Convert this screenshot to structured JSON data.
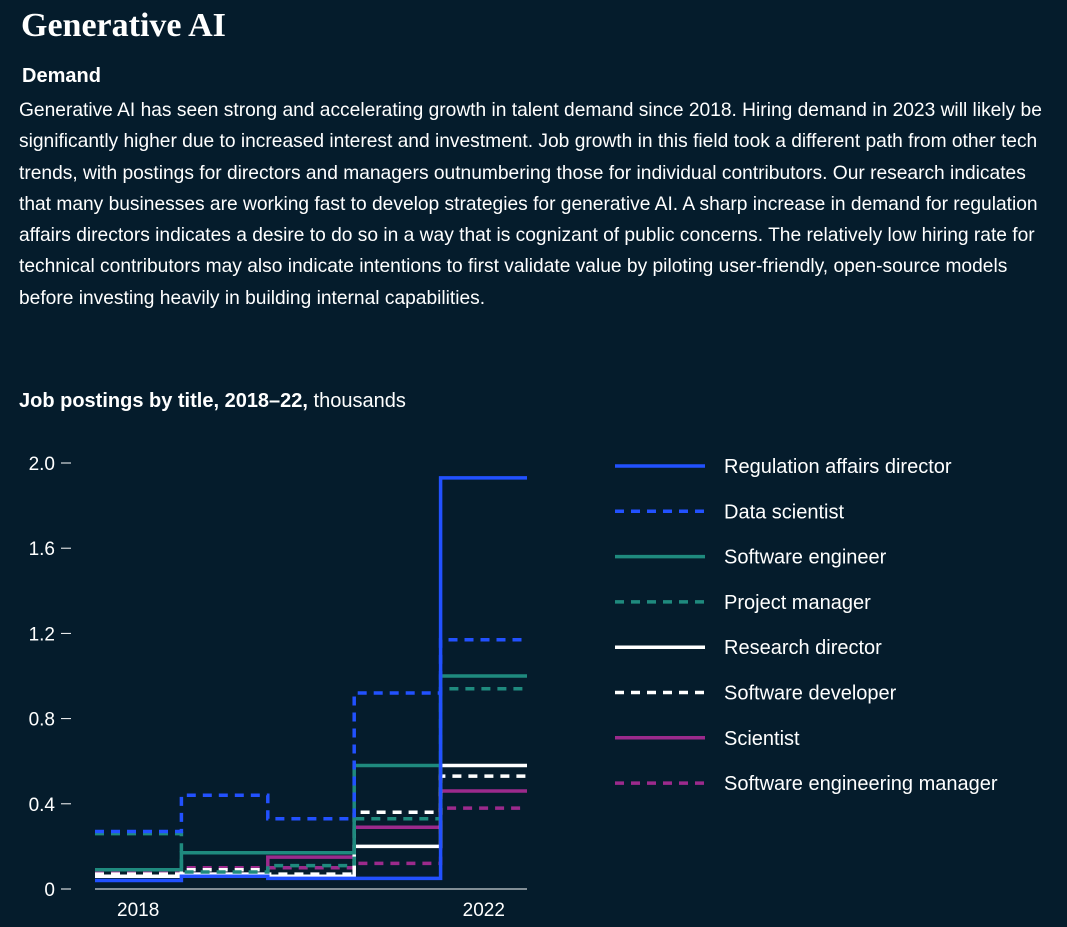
{
  "page": {
    "title": "Generative AI",
    "section_heading": "Demand",
    "body": "Generative AI has seen strong and accelerating growth in talent demand since 2018. Hiring demand in 2023 will likely be significantly higher due to increased interest and investment. Job growth in this field took a different path from other tech trends, with postings for directors and managers outnumbering those for individual contributors. Our research indicates that many businesses are working fast to develop strategies for generative AI. A sharp increase in demand for regulation affairs directors indicates a desire to do so in a way that is cognizant of public concerns. The relatively low hiring rate for technical contributors may also indicate intentions to first validate value by piloting user-friendly, open-source models before investing heavily in building internal capabilities."
  },
  "chart_data": {
    "type": "line",
    "step": true,
    "title": "Job postings by title, 2018–22,",
    "title_unit": "thousands",
    "x": [
      2018,
      2019,
      2020,
      2021,
      2022
    ],
    "x_tick_labels": [
      "2018",
      "",
      "",
      "",
      "2022"
    ],
    "ylim": [
      0,
      2.0
    ],
    "y_ticks": [
      0,
      0.4,
      0.8,
      1.2,
      1.6,
      2.0
    ],
    "y_tick_labels": [
      "0",
      "0.4",
      "0.8",
      "1.2",
      "1.6",
      "2.0"
    ],
    "grid": false,
    "legend_position": "right",
    "series": [
      {
        "name": "Regulation affairs director",
        "color": "#2251ff",
        "dash": "solid",
        "values": [
          0.04,
          0.06,
          0.05,
          0.05,
          1.93
        ]
      },
      {
        "name": "Data scientist",
        "color": "#2251ff",
        "dash": "dashed",
        "values": [
          0.27,
          0.44,
          0.33,
          0.92,
          1.17
        ]
      },
      {
        "name": "Software engineer",
        "color": "#1f8a7e",
        "dash": "solid",
        "values": [
          0.09,
          0.17,
          0.17,
          0.58,
          1.0
        ]
      },
      {
        "name": "Project manager",
        "color": "#1f8a7e",
        "dash": "dashed",
        "values": [
          0.26,
          0.08,
          0.11,
          0.33,
          0.94
        ]
      },
      {
        "name": "Research director",
        "color": "#ffffff",
        "dash": "solid",
        "values": [
          0.06,
          0.07,
          0.06,
          0.2,
          0.58
        ]
      },
      {
        "name": "Software developer",
        "color": "#ffffff",
        "dash": "dashed",
        "values": [
          0.07,
          0.09,
          0.07,
          0.36,
          0.53
        ]
      },
      {
        "name": "Scientist",
        "color": "#9c2a8c",
        "dash": "solid",
        "values": [
          0.06,
          0.07,
          0.15,
          0.29,
          0.46
        ]
      },
      {
        "name": "Software engineering manager",
        "color": "#9c2a8c",
        "dash": "dashed",
        "values": [
          0.08,
          0.1,
          0.1,
          0.12,
          0.38
        ]
      }
    ]
  }
}
